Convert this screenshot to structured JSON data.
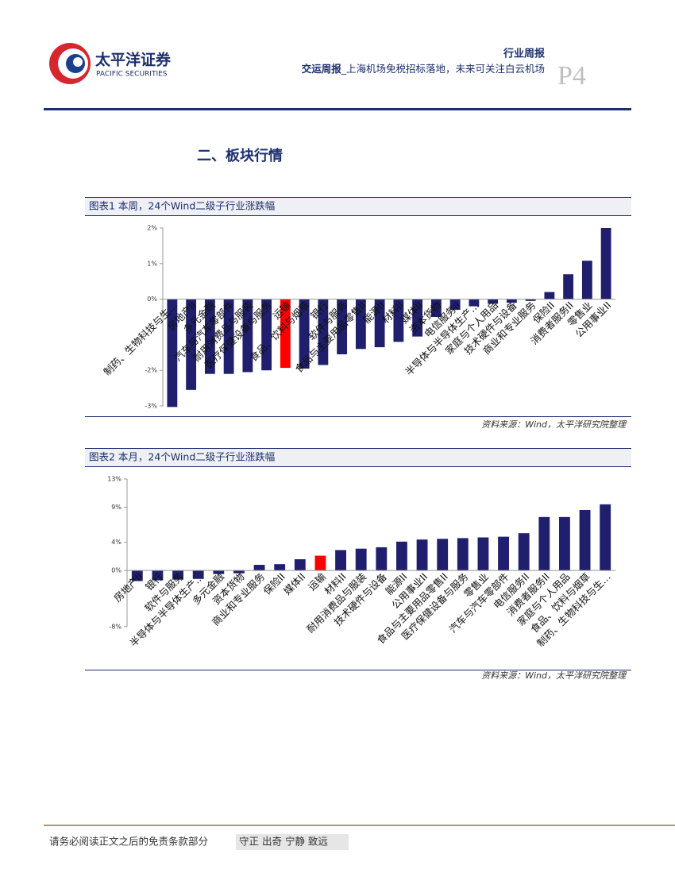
{
  "header": {
    "company": "太平洋证券",
    "company_en": "PACIFIC SECURITIES",
    "report_type": "行业周报",
    "report_name": "交运周报",
    "headline": "_上海机场免税招标落地，未来可关注白云机场",
    "page": "P4"
  },
  "section_title": "二、板块行情",
  "chart_data": [
    {
      "type": "bar",
      "title": "图表1 本周，24个Wind二级子行业涨跌幅",
      "source": "资料来源：Wind，太平洋研究院整理",
      "categories": [
        "制药、生物科技与生…",
        "房地产II",
        "多元金融",
        "汽车与汽车零部件",
        "耐用消费品与服装",
        "医疗保健设备与服务",
        "运输",
        "食品、饮料与烟草",
        "银行",
        "软件与服务",
        "食品与主要用品零售II",
        "能源II",
        "材料II",
        "媒体II",
        "资本货物",
        "电信服务II",
        "半导体与半导体生产…",
        "家庭与个人用品",
        "技术硬件与设备",
        "商业和专业服务",
        "保险II",
        "消费者服务II",
        "零售业",
        "公用事业II"
      ],
      "values": [
        -3.03,
        -2.55,
        -2.1,
        -2.1,
        -2.05,
        -2.0,
        -1.93,
        -1.95,
        -1.85,
        -1.55,
        -1.4,
        -1.35,
        -1.2,
        -1.05,
        -0.5,
        -0.3,
        -0.2,
        -0.13,
        -0.1,
        -0.05,
        0.2,
        0.7,
        1.08,
        2.0
      ],
      "colors": [
        "#1f1f6e",
        "#1f1f6e",
        "#1f1f6e",
        "#1f1f6e",
        "#1f1f6e",
        "#1f1f6e",
        "#ff0000",
        "#1f1f6e",
        "#1f1f6e",
        "#1f1f6e",
        "#1f1f6e",
        "#1f1f6e",
        "#1f1f6e",
        "#1f1f6e",
        "#1f1f6e",
        "#1f1f6e",
        "#1f1f6e",
        "#1f1f6e",
        "#1f1f6e",
        "#1f1f6e",
        "#1f1f6e",
        "#1f1f6e",
        "#1f1f6e",
        "#1f1f6e"
      ],
      "ylim": [
        -3,
        2
      ],
      "yticks": [
        {
          "value": 2,
          "label": "2%"
        },
        {
          "value": 1,
          "label": "1%"
        },
        {
          "value": 0,
          "label": "0%"
        },
        {
          "value": -2,
          "label": "-2%"
        },
        {
          "value": -3,
          "label": "-3%"
        }
      ]
    },
    {
      "type": "bar",
      "title": "图表2 本月，24个Wind二级子行业涨跌幅",
      "source": "资料来源：Wind，太平洋研究院整理",
      "categories": [
        "房地产II",
        "银行",
        "软件与服务",
        "半导体与半导体生产…",
        "多元金融",
        "资本货物",
        "商业和专业服务",
        "保险II",
        "媒体II",
        "运输",
        "材料II",
        "耐用消费品与服装",
        "技术硬件与设备",
        "能源II",
        "公用事业II",
        "食品与主要用品零售II",
        "医疗保健设备与服务",
        "零售业",
        "汽车与汽车零部件",
        "电信服务II",
        "消费者服务II",
        "家庭与个人用品",
        "食品、饮料与烟草",
        "制药、生物科技与生…"
      ],
      "values": [
        -1.5,
        -1.4,
        -1.3,
        -1.2,
        -0.5,
        -0.4,
        0.8,
        0.9,
        1.6,
        2.1,
        2.9,
        3.1,
        3.3,
        4.1,
        4.4,
        4.5,
        4.6,
        4.7,
        4.8,
        5.3,
        7.6,
        7.6,
        8.6,
        9.4
      ],
      "colors": [
        "#1f1f6e",
        "#1f1f6e",
        "#1f1f6e",
        "#1f1f6e",
        "#1f1f6e",
        "#1f1f6e",
        "#1f1f6e",
        "#1f1f6e",
        "#1f1f6e",
        "#ff0000",
        "#1f1f6e",
        "#1f1f6e",
        "#1f1f6e",
        "#1f1f6e",
        "#1f1f6e",
        "#1f1f6e",
        "#1f1f6e",
        "#1f1f6e",
        "#1f1f6e",
        "#1f1f6e",
        "#1f1f6e",
        "#1f1f6e",
        "#1f1f6e",
        "#1f1f6e"
      ],
      "ylim": [
        -8,
        13
      ],
      "yticks": [
        {
          "value": 13,
          "label": "13%"
        },
        {
          "value": 9,
          "label": "9%"
        },
        {
          "value": 4,
          "label": "4%"
        },
        {
          "value": 0,
          "label": "0%"
        },
        {
          "value": -8,
          "label": "-8%"
        }
      ]
    }
  ],
  "footer": {
    "disclaimer": "请务必阅读正文之后的免责条款部分",
    "motto": "守正 出奇 宁静 致远"
  }
}
